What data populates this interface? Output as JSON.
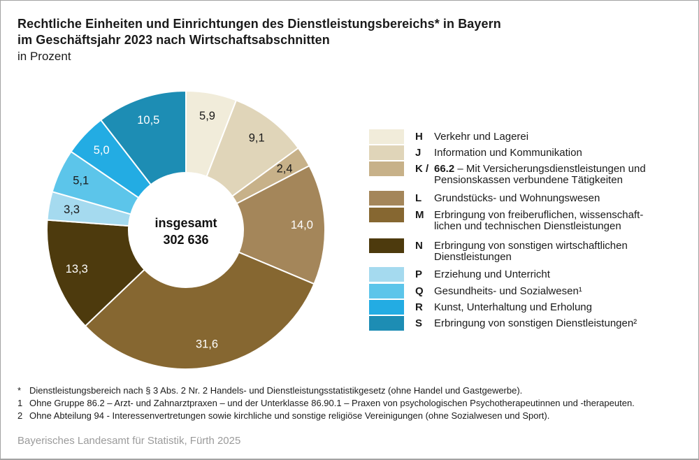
{
  "title": {
    "line1": "Rechtliche Einheiten und Einrichtungen des Dienstleistungsbereichs* in Bayern",
    "line2": "im Geschäftsjahr 2023 nach Wirtschaftsabschnitten",
    "subtitle": "in Prozent"
  },
  "chart_data": {
    "type": "pie",
    "donut": true,
    "unit": "Prozent",
    "start_angle_deg": 0,
    "direction": "clockwise",
    "center_label": {
      "line1": "insgesamt",
      "line2": "302 636"
    },
    "slices": [
      {
        "letter": "H",
        "label": "Verkehr und Lagerei",
        "value": 5.9,
        "display": "5,9",
        "color": "#F1ECDA",
        "label_color": "#1A1A1A"
      },
      {
        "letter": "J",
        "label": "Information und Kommunikation",
        "value": 9.1,
        "display": "9,1",
        "color": "#E0D5B9",
        "label_color": "#1A1A1A"
      },
      {
        "letter": "K / 66.2",
        "label": "Mit Versicherungsdienstleistungen und Pensionskassen verbundene Tätigkeiten",
        "value": 2.4,
        "display": "2,4",
        "color": "#C7B189",
        "label_color": "#1A1A1A"
      },
      {
        "letter": "L",
        "label": "Grundstücks- und Wohnungswesen",
        "value": 14.0,
        "display": "14,0",
        "color": "#A4865A",
        "label_color": "#FFFFFF"
      },
      {
        "letter": "M",
        "label": "Erbringung von freiberuflichen, wissenschaftlichen und technischen Dienstleistungen",
        "value": 31.6,
        "display": "31,6",
        "color": "#866731",
        "label_color": "#FFFFFF"
      },
      {
        "letter": "N",
        "label": "Erbringung von sonstigen wirtschaftlichen Dienstleistungen",
        "value": 13.3,
        "display": "13,3",
        "color": "#4D3A0D",
        "label_color": "#FFFFFF"
      },
      {
        "letter": "P",
        "label": "Erziehung und Unterricht",
        "value": 3.3,
        "display": "3,3",
        "color": "#A5DAEF",
        "label_color": "#1A1A1A"
      },
      {
        "letter": "Q",
        "label": "Gesundheits- und Sozialwesen¹",
        "value": 5.1,
        "display": "5,1",
        "color": "#5CC5EA",
        "label_color": "#1A1A1A"
      },
      {
        "letter": "R",
        "label": "Kunst, Unterhaltung und Erholung",
        "value": 5.0,
        "display": "5,0",
        "color": "#23ACE3",
        "label_color": "#FFFFFF"
      },
      {
        "letter": "S",
        "label": "Erbringung von sonstigen Dienstleistungen²",
        "value": 10.5,
        "display": "10,5",
        "color": "#1D8DB4",
        "label_color": "#FFFFFF"
      }
    ]
  },
  "legend": {
    "items": [
      {
        "letter": "H",
        "lines": [
          "Verkehr und Lagerei"
        ]
      },
      {
        "letter": "J",
        "lines": [
          "Information und Kommunikation"
        ]
      },
      {
        "letter": "K /",
        "bold_start": "66.2",
        "lines": [
          "– Mit Versicherungsdienstleistungen und",
          "Pensionskassen verbundene Tätigkeiten"
        ]
      },
      {
        "letter": "L",
        "lines": [
          "Grundstücks- und Wohnungswesen"
        ]
      },
      {
        "letter": "M",
        "lines": [
          "Erbringung von freiberuflichen, wissenschaft-",
          "lichen und technischen Dienstleistungen"
        ]
      },
      {
        "letter": "N",
        "lines": [
          "Erbringung von sonstigen wirtschaftlichen",
          "Dienstleistungen"
        ]
      },
      {
        "letter": "P",
        "lines": [
          "Erziehung und Unterricht"
        ]
      },
      {
        "letter": "Q",
        "lines": [
          "Gesundheits- und Sozialwesen¹"
        ]
      },
      {
        "letter": "R",
        "lines": [
          "Kunst, Unterhaltung und Erholung"
        ]
      },
      {
        "letter": "S",
        "lines": [
          "Erbringung von sonstigen Dienstleistungen²"
        ]
      }
    ]
  },
  "footnotes": [
    {
      "marker": "*",
      "text": "Dienstleistungsbereich nach § 3 Abs. 2 Nr. 2 Handels- und Dienstleistungsstatistikgesetz (ohne Handel und Gastgewerbe)."
    },
    {
      "marker": "1",
      "text": "Ohne Gruppe 86.2 – Arzt- und Zahnarztpraxen – und der Unterklasse 86.90.1 – Praxen von psychologischen Psychotherapeutinnen und -therapeuten."
    },
    {
      "marker": "2",
      "text": "Ohne Abteilung 94 - Interessenvertretungen sowie kirchliche und sonstige religiöse Vereinigungen (ohne Sozialwesen und Sport)."
    }
  ],
  "footer": "Bayerisches Landesamt für Statistik, Fürth 2025"
}
